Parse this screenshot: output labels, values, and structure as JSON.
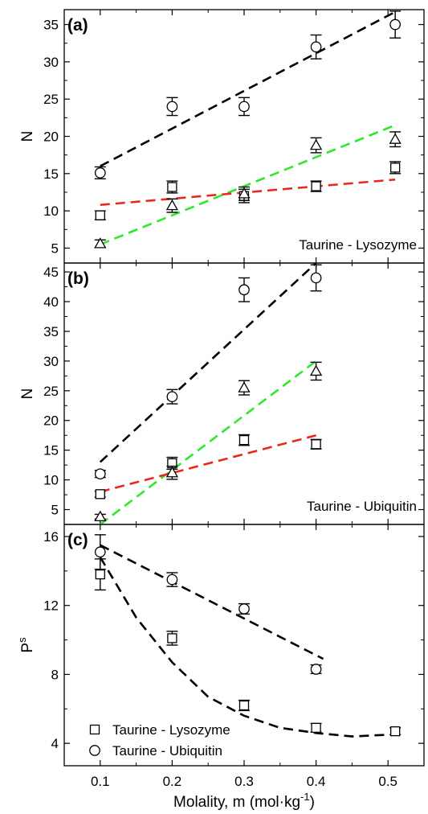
{
  "figure": {
    "xlabel": "Molality, m (mol·kg",
    "xlabel_sup": "-1",
    "xlabel_close": ")",
    "xticks": [
      "0.1",
      "0.2",
      "0.3",
      "0.4",
      "0.5"
    ],
    "xlim": [
      0.05,
      0.55
    ],
    "colors": {
      "black": "#000000",
      "red": "#e8281e",
      "green": "#2ee82e"
    }
  },
  "chart_data": [
    {
      "type": "scatter",
      "panel_label": "(a)",
      "annotation": "Taurine - Lysozyme",
      "ylabel": "N",
      "ylim": [
        3,
        37
      ],
      "yticks": [
        5,
        10,
        15,
        20,
        25,
        30,
        35
      ],
      "x": [
        0.1,
        0.2,
        0.3,
        0.4,
        0.51
      ],
      "series": [
        {
          "marker": "circle",
          "values": [
            15.1,
            24.0,
            24.0,
            32.0,
            35.0
          ],
          "errors": [
            0.8,
            1.2,
            1.2,
            1.6,
            1.8
          ]
        },
        {
          "marker": "square",
          "values": [
            9.4,
            13.2,
            12.0,
            13.3,
            15.8
          ],
          "errors": [
            0.6,
            0.8,
            0.9,
            0.7,
            0.8
          ]
        },
        {
          "marker": "triangle",
          "values": [
            5.6,
            10.7,
            12.3,
            18.8,
            19.6
          ],
          "errors": [
            0.5,
            0.9,
            0.9,
            1.0,
            1.0
          ]
        }
      ],
      "fits": [
        {
          "color": "black",
          "x": [
            0.1,
            0.51
          ],
          "y": [
            16.0,
            36.7
          ]
        },
        {
          "color": "green",
          "x": [
            0.1,
            0.51
          ],
          "y": [
            5.5,
            21.5
          ]
        },
        {
          "color": "red",
          "x": [
            0.1,
            0.51
          ],
          "y": [
            10.8,
            14.2
          ]
        }
      ]
    },
    {
      "type": "scatter",
      "panel_label": "(b)",
      "annotation": "Taurine - Ubiquitin",
      "ylabel": "N",
      "ylim": [
        2.5,
        46.5
      ],
      "yticks": [
        5,
        10,
        15,
        20,
        25,
        30,
        35,
        40,
        45
      ],
      "x": [
        0.1,
        0.2,
        0.3,
        0.4
      ],
      "series": [
        {
          "marker": "circle",
          "values": [
            11.0,
            24.0,
            42.0,
            44.0
          ],
          "errors": [
            0.6,
            1.2,
            2.0,
            2.2
          ]
        },
        {
          "marker": "square",
          "values": [
            7.6,
            12.8,
            16.7,
            16.0
          ],
          "errors": [
            0.5,
            1.0,
            0.9,
            0.8
          ]
        },
        {
          "marker": "triangle",
          "values": [
            3.8,
            11.2,
            25.5,
            28.3
          ],
          "errors": [
            0.4,
            1.1,
            1.2,
            1.5
          ]
        }
      ],
      "fits": [
        {
          "color": "black",
          "x": [
            0.1,
            0.4
          ],
          "y": [
            13.0,
            46.5
          ]
        },
        {
          "color": "green",
          "x": [
            0.1,
            0.4
          ],
          "y": [
            2.5,
            30.0
          ]
        },
        {
          "color": "red",
          "x": [
            0.1,
            0.4
          ],
          "y": [
            8.0,
            17.5
          ]
        }
      ]
    },
    {
      "type": "scatter",
      "panel_label": "(c)",
      "ylabel": "P",
      "ylabel_sup": "s",
      "ylim": [
        2.7,
        16.7
      ],
      "yticks": [
        4,
        8,
        12,
        16
      ],
      "series": [
        {
          "name": "Taurine - Lysozyme",
          "marker": "square",
          "x": [
            0.1,
            0.2,
            0.3,
            0.4,
            0.51
          ],
          "values": [
            13.8,
            10.1,
            6.2,
            4.9,
            4.7
          ],
          "errors": [
            0.9,
            0.4,
            0.3,
            0.25,
            0.2
          ]
        },
        {
          "name": "Taurine - Ubiquitin",
          "marker": "circle",
          "x": [
            0.1,
            0.2,
            0.3,
            0.4
          ],
          "values": [
            15.1,
            13.5,
            11.8,
            8.3
          ],
          "errors": [
            1.0,
            0.4,
            0.3,
            0.25
          ]
        }
      ],
      "fits": [
        {
          "color": "black",
          "x": [
            0.1,
            0.15,
            0.2,
            0.25,
            0.3,
            0.35,
            0.4,
            0.45,
            0.5
          ],
          "y": [
            14.8,
            11.3,
            8.7,
            6.7,
            5.6,
            4.9,
            4.6,
            4.4,
            4.5
          ]
        },
        {
          "color": "black",
          "x": [
            0.1,
            0.41
          ],
          "y": [
            15.5,
            8.9
          ]
        }
      ]
    }
  ]
}
